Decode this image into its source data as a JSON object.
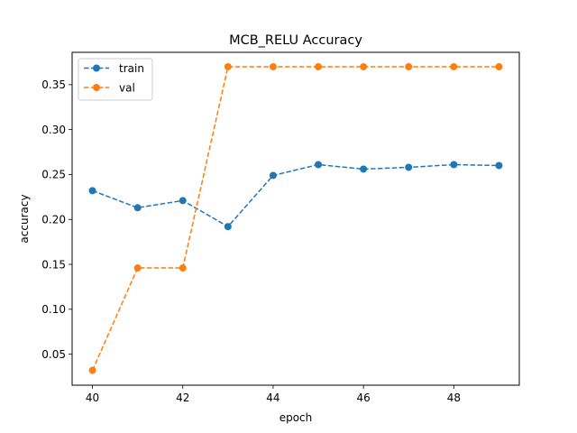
{
  "chart_data": {
    "type": "line",
    "title": "MCB_RELU Accuracy",
    "xlabel": "epoch",
    "ylabel": "accuracy",
    "x": [
      40,
      41,
      42,
      43,
      44,
      45,
      46,
      47,
      48,
      49
    ],
    "xlim": [
      39.55,
      49.45
    ],
    "ylim": [
      0.0155,
      0.386
    ],
    "xticks": [
      40,
      42,
      44,
      46,
      48
    ],
    "yticks": [
      0.05,
      0.1,
      0.15,
      0.2,
      0.25,
      0.3,
      0.35
    ],
    "grid": false,
    "legend_position": "top-left",
    "series": [
      {
        "name": "train",
        "color": "#1f77b4",
        "line_style": "dashed",
        "marker": "circle",
        "values": [
          0.232,
          0.213,
          0.221,
          0.192,
          0.249,
          0.261,
          0.256,
          0.258,
          0.261,
          0.26
        ]
      },
      {
        "name": "val",
        "color": "#ff7f0e",
        "line_style": "dashed",
        "marker": "circle",
        "values": [
          0.032,
          0.146,
          0.146,
          0.37,
          0.37,
          0.37,
          0.37,
          0.37,
          0.37,
          0.37
        ]
      }
    ]
  }
}
